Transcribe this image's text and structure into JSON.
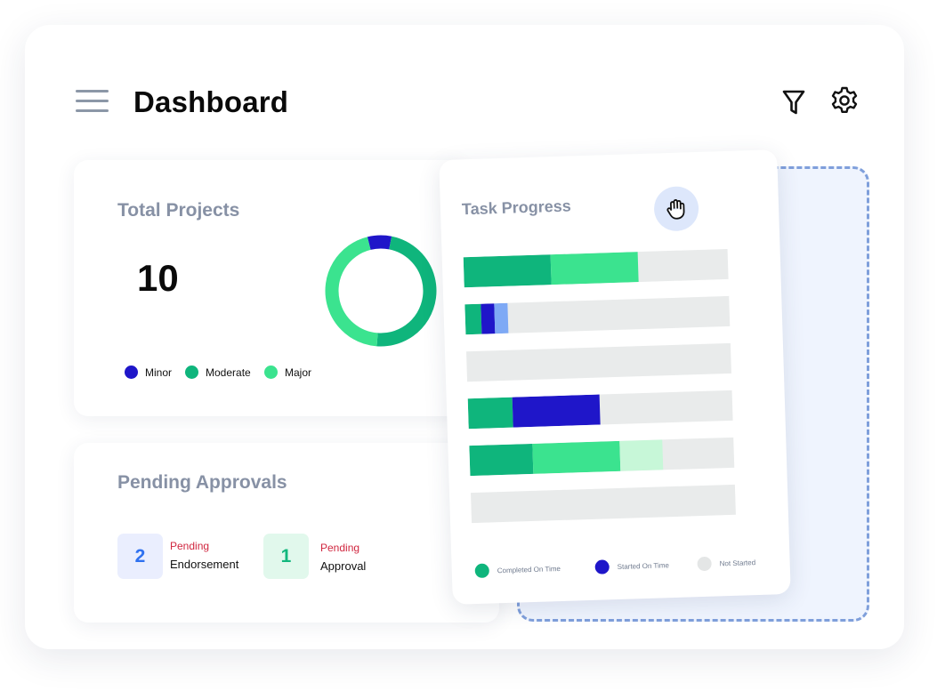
{
  "header": {
    "title": "Dashboard"
  },
  "icons": {
    "menu": "hamburger-menu-icon",
    "filter": "filter-icon",
    "settings": "gear-icon",
    "drag": "grab-hand-icon"
  },
  "total_projects": {
    "title": "Total Projects",
    "count": "10",
    "legend": [
      {
        "label": "Minor",
        "color": "#1f16c9"
      },
      {
        "label": "Moderate",
        "color": "#0fb57c"
      },
      {
        "label": "Major",
        "color": "#3be38f"
      }
    ],
    "donut": [
      {
        "label": "Minor",
        "percent": 7,
        "color": "#1f16c9"
      },
      {
        "label": "Moderate",
        "percent": 48,
        "color": "#0fb57c"
      },
      {
        "label": "Major",
        "percent": 45,
        "color": "#3be38f"
      }
    ]
  },
  "pending_approvals": {
    "title": "Pending Approvals",
    "items": [
      {
        "count": "2",
        "status": "Pending",
        "label": "Endorsement",
        "box_color": "#eaeefe",
        "count_color": "#2f71f0"
      },
      {
        "count": "1",
        "status": "Pending",
        "label": "Approval",
        "box_color": "#e1f8ec",
        "count_color": "#12b77d"
      }
    ]
  },
  "task_progress": {
    "title": "Task Progress",
    "bars": [
      [
        {
          "percent": 33,
          "color": "#0fb57c"
        },
        {
          "percent": 33,
          "color": "#3be38f"
        }
      ],
      [
        {
          "percent": 6,
          "color": "#0fb57c"
        },
        {
          "percent": 5,
          "color": "#1f16c9"
        },
        {
          "percent": 5,
          "color": "#7ea9f5"
        }
      ],
      [],
      [
        {
          "percent": 17,
          "color": "#0fb57c"
        },
        {
          "percent": 33,
          "color": "#1f16c9"
        }
      ],
      [
        {
          "percent": 24,
          "color": "#0fb57c"
        },
        {
          "percent": 33,
          "color": "#3be38f"
        },
        {
          "percent": 16,
          "color": "#c7f7d8"
        }
      ],
      []
    ],
    "legend": [
      {
        "label": "Completed On Time",
        "color": "#0fb57c"
      },
      {
        "label": "Started On Time",
        "color": "#1f16c9"
      },
      {
        "label": "Not Started",
        "color": "#e9ebeb"
      }
    ]
  }
}
